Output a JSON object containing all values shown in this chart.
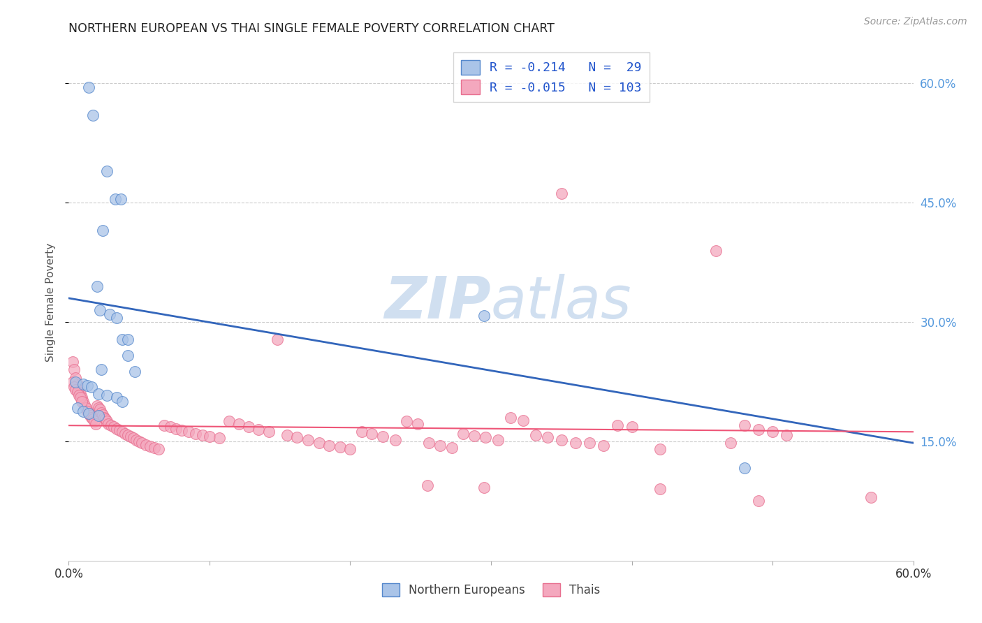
{
  "title": "NORTHERN EUROPEAN VS THAI SINGLE FEMALE POVERTY CORRELATION CHART",
  "source": "Source: ZipAtlas.com",
  "ylabel": "Single Female Poverty",
  "xlim": [
    0.0,
    0.6
  ],
  "ylim": [
    0.0,
    0.65
  ],
  "ytick_vals": [
    0.15,
    0.3,
    0.45,
    0.6
  ],
  "ytick_labels": [
    "15.0%",
    "30.0%",
    "45.0%",
    "60.0%"
  ],
  "blue_color": "#aac4e8",
  "pink_color": "#f4a8be",
  "blue_edge_color": "#5588cc",
  "pink_edge_color": "#e87090",
  "blue_line_color": "#3366bb",
  "pink_line_color": "#ee5577",
  "right_tick_color": "#5599dd",
  "watermark_color": "#d0dff0",
  "blue_line_x": [
    0.0,
    0.6
  ],
  "blue_line_y": [
    0.33,
    0.148
  ],
  "pink_line_x": [
    0.0,
    0.6
  ],
  "pink_line_y": [
    0.17,
    0.162
  ],
  "blue_points": [
    [
      0.014,
      0.595
    ],
    [
      0.017,
      0.56
    ],
    [
      0.027,
      0.49
    ],
    [
      0.033,
      0.455
    ],
    [
      0.037,
      0.455
    ],
    [
      0.024,
      0.415
    ],
    [
      0.02,
      0.345
    ],
    [
      0.022,
      0.315
    ],
    [
      0.029,
      0.31
    ],
    [
      0.034,
      0.305
    ],
    [
      0.038,
      0.278
    ],
    [
      0.042,
      0.278
    ],
    [
      0.295,
      0.308
    ],
    [
      0.042,
      0.258
    ],
    [
      0.023,
      0.24
    ],
    [
      0.047,
      0.238
    ],
    [
      0.005,
      0.225
    ],
    [
      0.01,
      0.222
    ],
    [
      0.013,
      0.22
    ],
    [
      0.016,
      0.218
    ],
    [
      0.021,
      0.21
    ],
    [
      0.027,
      0.208
    ],
    [
      0.034,
      0.205
    ],
    [
      0.038,
      0.2
    ],
    [
      0.006,
      0.192
    ],
    [
      0.01,
      0.188
    ],
    [
      0.014,
      0.185
    ],
    [
      0.021,
      0.182
    ],
    [
      0.48,
      0.117
    ]
  ],
  "pink_points": [
    [
      0.003,
      0.25
    ],
    [
      0.004,
      0.24
    ],
    [
      0.005,
      0.23
    ],
    [
      0.006,
      0.222
    ],
    [
      0.007,
      0.215
    ],
    [
      0.008,
      0.21
    ],
    [
      0.009,
      0.205
    ],
    [
      0.01,
      0.2
    ],
    [
      0.011,
      0.196
    ],
    [
      0.012,
      0.192
    ],
    [
      0.013,
      0.188
    ],
    [
      0.014,
      0.185
    ],
    [
      0.015,
      0.182
    ],
    [
      0.016,
      0.18
    ],
    [
      0.017,
      0.178
    ],
    [
      0.018,
      0.175
    ],
    [
      0.019,
      0.172
    ],
    [
      0.003,
      0.225
    ],
    [
      0.004,
      0.218
    ],
    [
      0.005,
      0.215
    ],
    [
      0.006,
      0.212
    ],
    [
      0.007,
      0.208
    ],
    [
      0.008,
      0.205
    ],
    [
      0.009,
      0.2
    ],
    [
      0.02,
      0.195
    ],
    [
      0.021,
      0.192
    ],
    [
      0.022,
      0.19
    ],
    [
      0.023,
      0.186
    ],
    [
      0.024,
      0.183
    ],
    [
      0.025,
      0.18
    ],
    [
      0.026,
      0.178
    ],
    [
      0.027,
      0.175
    ],
    [
      0.028,
      0.172
    ],
    [
      0.03,
      0.17
    ],
    [
      0.032,
      0.168
    ],
    [
      0.034,
      0.166
    ],
    [
      0.036,
      0.164
    ],
    [
      0.038,
      0.162
    ],
    [
      0.04,
      0.16
    ],
    [
      0.042,
      0.158
    ],
    [
      0.044,
      0.156
    ],
    [
      0.046,
      0.154
    ],
    [
      0.048,
      0.152
    ],
    [
      0.05,
      0.15
    ],
    [
      0.052,
      0.148
    ],
    [
      0.055,
      0.146
    ],
    [
      0.058,
      0.144
    ],
    [
      0.061,
      0.142
    ],
    [
      0.064,
      0.14
    ],
    [
      0.068,
      0.17
    ],
    [
      0.072,
      0.168
    ],
    [
      0.076,
      0.166
    ],
    [
      0.08,
      0.164
    ],
    [
      0.085,
      0.162
    ],
    [
      0.09,
      0.16
    ],
    [
      0.095,
      0.158
    ],
    [
      0.1,
      0.156
    ],
    [
      0.107,
      0.154
    ],
    [
      0.114,
      0.175
    ],
    [
      0.121,
      0.172
    ],
    [
      0.128,
      0.168
    ],
    [
      0.135,
      0.165
    ],
    [
      0.142,
      0.162
    ],
    [
      0.148,
      0.278
    ],
    [
      0.155,
      0.158
    ],
    [
      0.162,
      0.155
    ],
    [
      0.17,
      0.152
    ],
    [
      0.178,
      0.148
    ],
    [
      0.185,
      0.145
    ],
    [
      0.193,
      0.143
    ],
    [
      0.2,
      0.14
    ],
    [
      0.208,
      0.162
    ],
    [
      0.215,
      0.16
    ],
    [
      0.223,
      0.156
    ],
    [
      0.232,
      0.152
    ],
    [
      0.24,
      0.175
    ],
    [
      0.248,
      0.172
    ],
    [
      0.256,
      0.148
    ],
    [
      0.264,
      0.145
    ],
    [
      0.272,
      0.142
    ],
    [
      0.28,
      0.16
    ],
    [
      0.288,
      0.157
    ],
    [
      0.296,
      0.155
    ],
    [
      0.305,
      0.152
    ],
    [
      0.314,
      0.18
    ],
    [
      0.323,
      0.176
    ],
    [
      0.332,
      0.158
    ],
    [
      0.34,
      0.155
    ],
    [
      0.35,
      0.152
    ],
    [
      0.36,
      0.148
    ],
    [
      0.37,
      0.148
    ],
    [
      0.35,
      0.462
    ],
    [
      0.38,
      0.145
    ],
    [
      0.39,
      0.17
    ],
    [
      0.4,
      0.168
    ],
    [
      0.42,
      0.14
    ],
    [
      0.46,
      0.39
    ],
    [
      0.47,
      0.148
    ],
    [
      0.48,
      0.17
    ],
    [
      0.49,
      0.165
    ],
    [
      0.5,
      0.162
    ],
    [
      0.51,
      0.158
    ],
    [
      0.255,
      0.095
    ],
    [
      0.295,
      0.092
    ],
    [
      0.42,
      0.09
    ],
    [
      0.49,
      0.075
    ],
    [
      0.57,
      0.08
    ]
  ]
}
